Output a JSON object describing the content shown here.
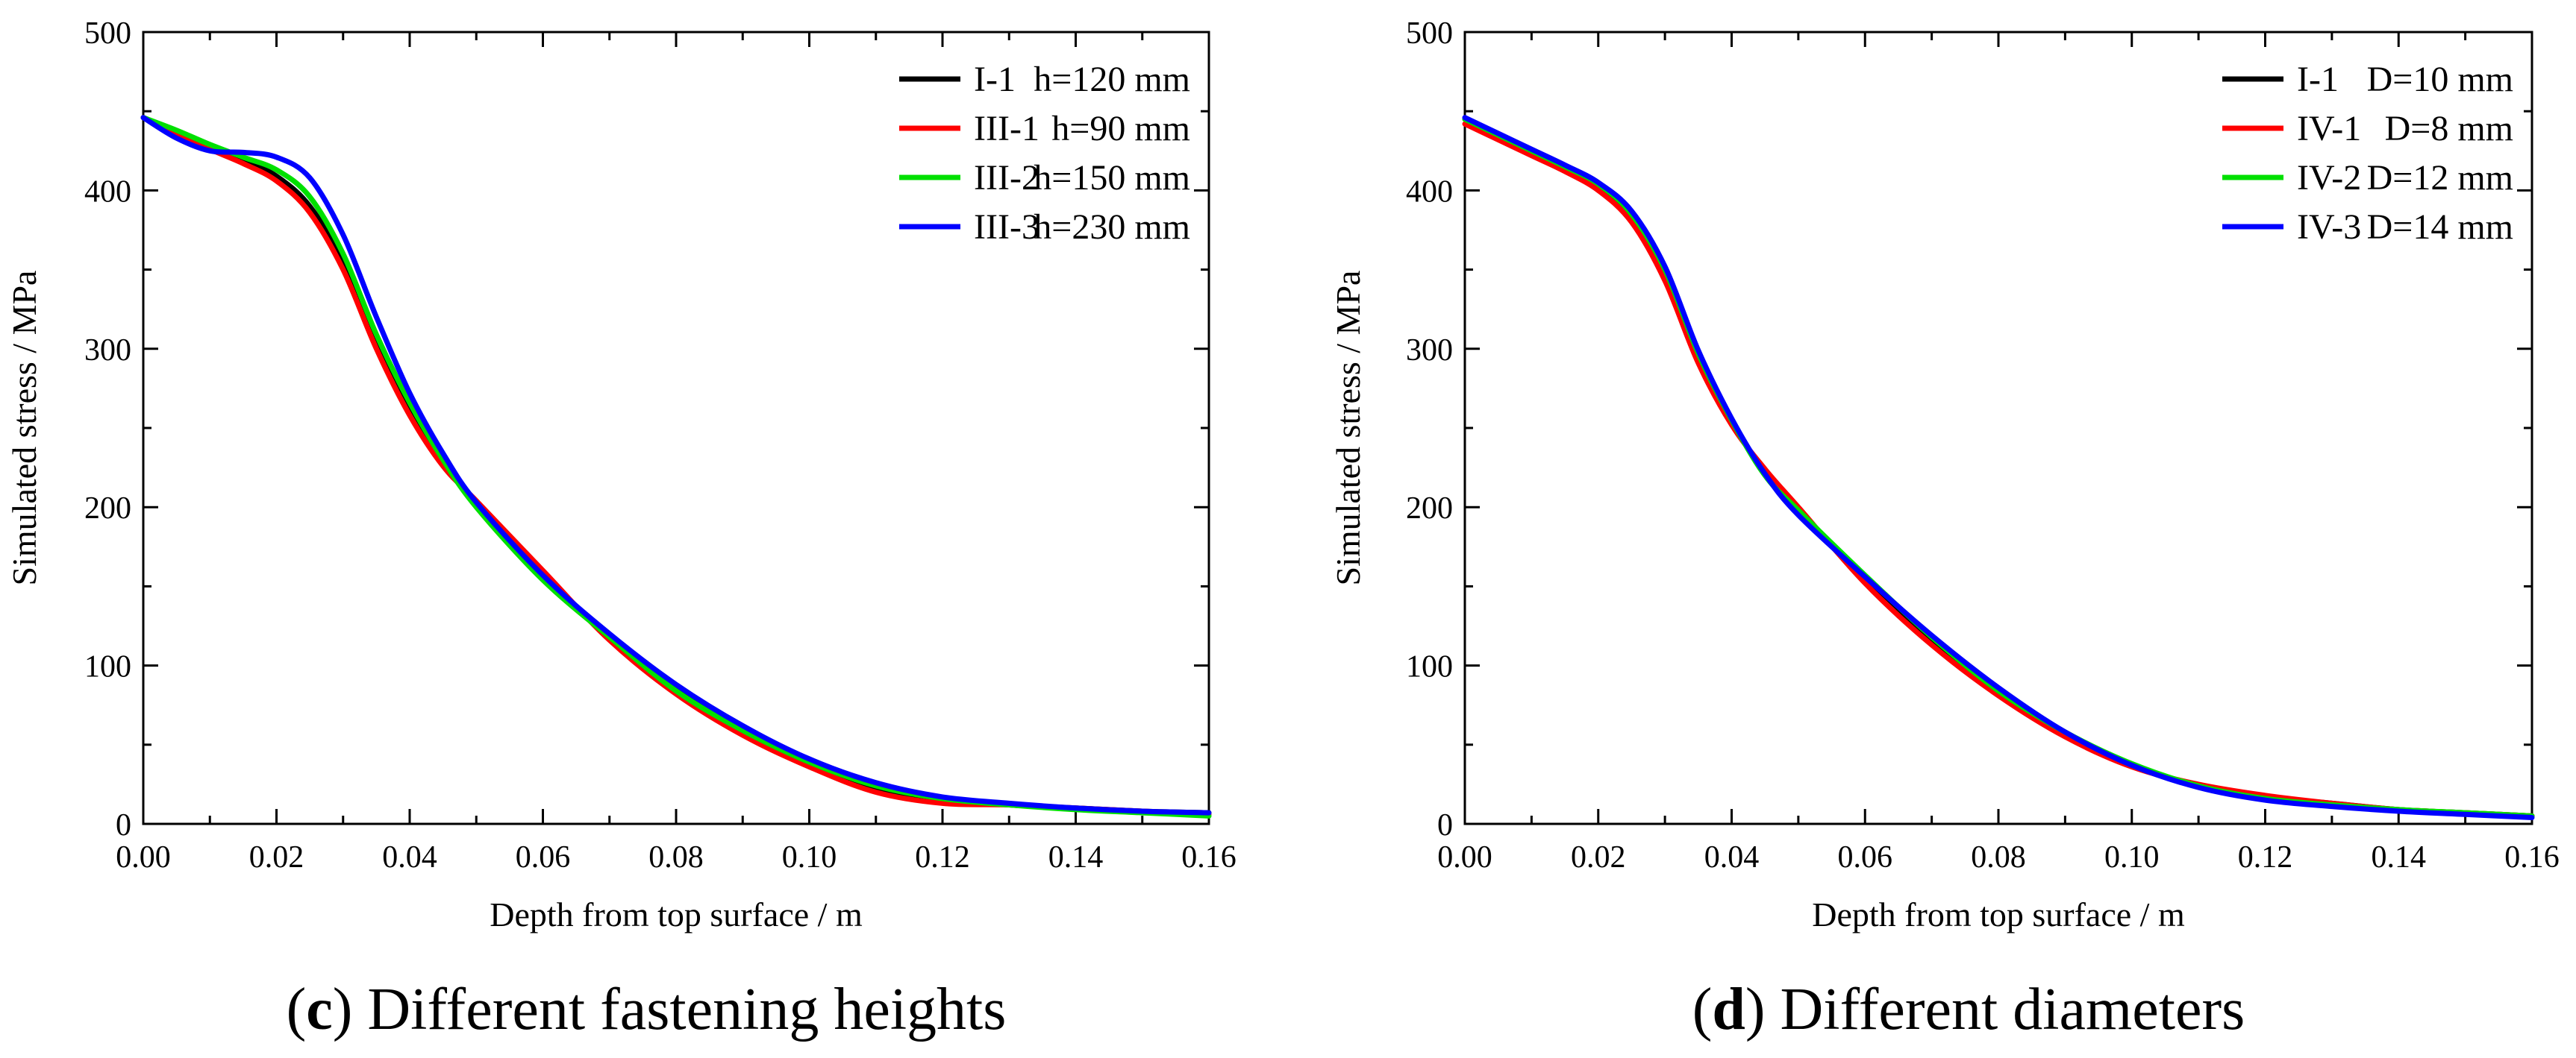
{
  "chart_data": [
    {
      "type": "line",
      "title": "",
      "xlabel": "Depth from top surface / m",
      "ylabel": "Simulated stress / MPa",
      "xlim": [
        0,
        0.16
      ],
      "ylim": [
        0,
        500
      ],
      "x_ticks": [
        "0.00",
        "0.02",
        "0.04",
        "0.06",
        "0.08",
        "0.10",
        "0.12",
        "0.14",
        "0.16"
      ],
      "y_ticks": [
        "0",
        "100",
        "200",
        "300",
        "400",
        "500"
      ],
      "grid": false,
      "legend_position": "top-right",
      "caption": {
        "label": "c",
        "text": ") Different fastening heights"
      },
      "series": [
        {
          "name": "I-1",
          "param": "h=120 mm",
          "color": "#000000",
          "x": [
            0,
            0.005,
            0.01,
            0.015,
            0.02,
            0.025,
            0.03,
            0.035,
            0.04,
            0.045,
            0.05,
            0.06,
            0.07,
            0.08,
            0.09,
            0.1,
            0.11,
            0.12,
            0.13,
            0.14,
            0.15,
            0.16
          ],
          "y": [
            446,
            436,
            427,
            419,
            409,
            390,
            355,
            305,
            262,
            228,
            203,
            157,
            118,
            86,
            60,
            39,
            23,
            16,
            12,
            10,
            8,
            7
          ]
        },
        {
          "name": "III-1",
          "param": "h=90 mm",
          "color": "#ff0000",
          "x": [
            0,
            0.005,
            0.01,
            0.015,
            0.02,
            0.025,
            0.03,
            0.035,
            0.04,
            0.045,
            0.05,
            0.06,
            0.07,
            0.08,
            0.09,
            0.1,
            0.11,
            0.12,
            0.13,
            0.14,
            0.15,
            0.16
          ],
          "y": [
            446,
            436,
            426,
            417,
            406,
            386,
            350,
            300,
            258,
            226,
            204,
            160,
            116,
            82,
            56,
            36,
            20,
            13,
            12,
            10,
            8,
            6
          ]
        },
        {
          "name": "III-2",
          "param": "h=150 mm",
          "color": "#00e000",
          "x": [
            0,
            0.005,
            0.01,
            0.015,
            0.02,
            0.025,
            0.03,
            0.035,
            0.04,
            0.045,
            0.05,
            0.06,
            0.07,
            0.08,
            0.09,
            0.1,
            0.11,
            0.12,
            0.13,
            0.14,
            0.15,
            0.16
          ],
          "y": [
            446,
            438,
            429,
            421,
            413,
            396,
            360,
            309,
            266,
            230,
            200,
            154,
            118,
            84,
            59,
            39,
            24,
            16,
            12,
            9,
            7,
            5
          ]
        },
        {
          "name": "III-3",
          "param": "h=230 mm",
          "color": "#0000ff",
          "x": [
            0,
            0.005,
            0.01,
            0.015,
            0.02,
            0.025,
            0.03,
            0.035,
            0.04,
            0.045,
            0.05,
            0.06,
            0.07,
            0.08,
            0.09,
            0.1,
            0.11,
            0.12,
            0.13,
            0.14,
            0.15,
            0.16
          ],
          "y": [
            446,
            433,
            425,
            424,
            421,
            408,
            372,
            320,
            272,
            234,
            203,
            157,
            120,
            88,
            62,
            41,
            26,
            17,
            13,
            10,
            8,
            7
          ]
        }
      ]
    },
    {
      "type": "line",
      "title": "",
      "xlabel": "Depth from top surface / m",
      "ylabel": "Simulated stress / MPa",
      "xlim": [
        0,
        0.16
      ],
      "ylim": [
        0,
        500
      ],
      "x_ticks": [
        "0.00",
        "0.02",
        "0.04",
        "0.06",
        "0.08",
        "0.10",
        "0.12",
        "0.14",
        "0.16"
      ],
      "y_ticks": [
        "0",
        "100",
        "200",
        "300",
        "400",
        "500"
      ],
      "grid": false,
      "legend_position": "top-right",
      "caption": {
        "label": "d",
        "text": ") Different diameters"
      },
      "series": [
        {
          "name": "I-1",
          "param": "D=10 mm",
          "color": "#000000",
          "x": [
            0,
            0.005,
            0.01,
            0.015,
            0.02,
            0.025,
            0.03,
            0.035,
            0.04,
            0.045,
            0.05,
            0.06,
            0.07,
            0.08,
            0.09,
            0.1,
            0.11,
            0.12,
            0.13,
            0.14,
            0.15,
            0.16
          ],
          "y": [
            445,
            434,
            424,
            414,
            402,
            383,
            347,
            294,
            254,
            222,
            197,
            156,
            117,
            85,
            57,
            37,
            24,
            17,
            13,
            9,
            7,
            5
          ]
        },
        {
          "name": "IV-1",
          "param": "D=8 mm",
          "color": "#ff0000",
          "x": [
            0,
            0.005,
            0.01,
            0.015,
            0.02,
            0.025,
            0.03,
            0.035,
            0.04,
            0.045,
            0.05,
            0.06,
            0.07,
            0.08,
            0.09,
            0.1,
            0.11,
            0.12,
            0.13,
            0.14,
            0.15,
            0.16
          ],
          "y": [
            442,
            432,
            422,
            412,
            400,
            380,
            343,
            291,
            252,
            224,
            200,
            152,
            113,
            81,
            55,
            36,
            25,
            18,
            13,
            9,
            7,
            5
          ]
        },
        {
          "name": "IV-2",
          "param": "D=12 mm",
          "color": "#00e000",
          "x": [
            0,
            0.005,
            0.01,
            0.015,
            0.02,
            0.025,
            0.03,
            0.035,
            0.04,
            0.045,
            0.05,
            0.06,
            0.07,
            0.08,
            0.09,
            0.1,
            0.11,
            0.12,
            0.13,
            0.14,
            0.15,
            0.16
          ],
          "y": [
            445,
            435,
            425,
            415,
            404,
            385,
            350,
            297,
            255,
            220,
            198,
            157,
            118,
            84,
            58,
            38,
            24,
            16,
            12,
            9,
            7,
            5
          ]
        },
        {
          "name": "IV-3",
          "param": "D=14 mm",
          "color": "#0000ff",
          "x": [
            0,
            0.005,
            0.01,
            0.015,
            0.02,
            0.025,
            0.03,
            0.035,
            0.04,
            0.045,
            0.05,
            0.06,
            0.07,
            0.08,
            0.09,
            0.1,
            0.11,
            0.12,
            0.13,
            0.14,
            0.15,
            0.16
          ],
          "y": [
            446,
            436,
            426,
            416,
            405,
            387,
            352,
            299,
            256,
            221,
            195,
            156,
            119,
            86,
            58,
            37,
            23,
            15,
            11,
            8,
            6,
            4
          ]
        }
      ]
    }
  ]
}
